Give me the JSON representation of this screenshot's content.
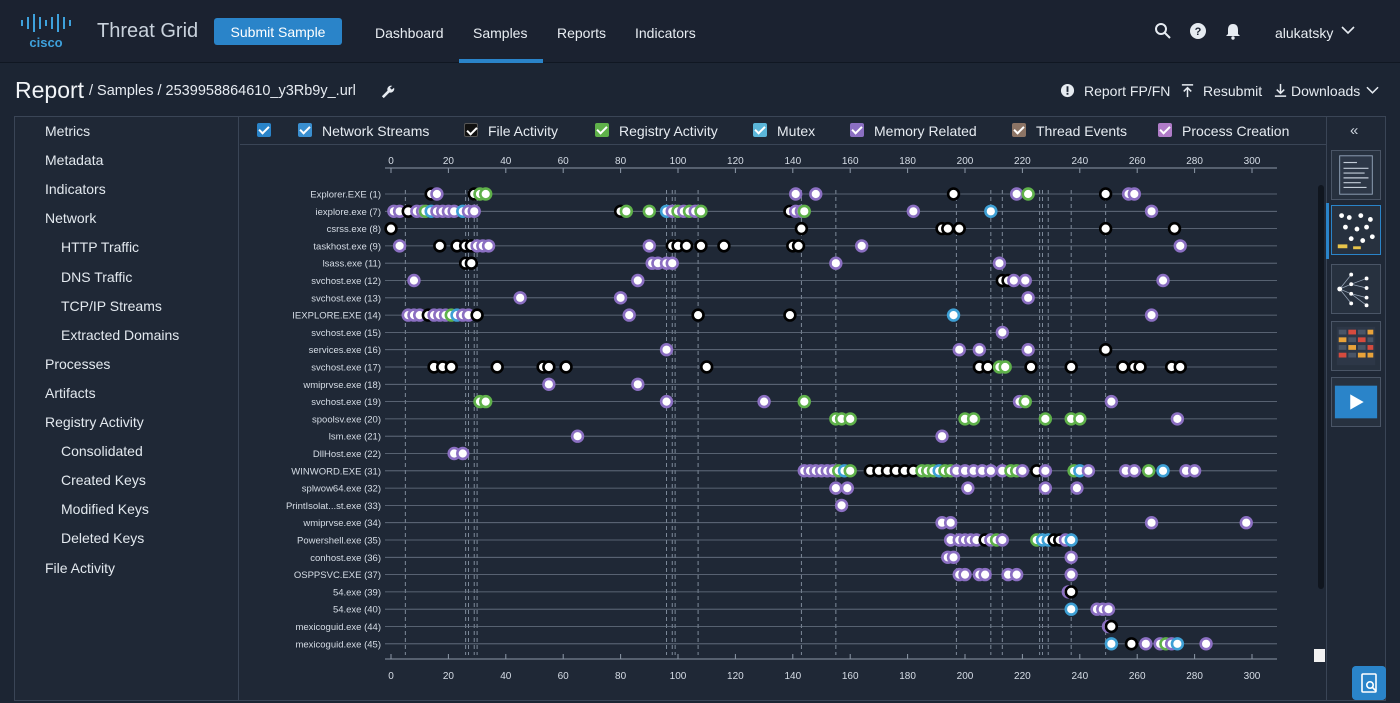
{
  "app": {
    "brand": "cisco",
    "title": "Threat Grid",
    "submit_label": "Submit Sample",
    "nav": [
      "Dashboard",
      "Samples",
      "Reports",
      "Indicators"
    ],
    "active_nav": "Samples",
    "user": "alukatsky",
    "icons": [
      "search-icon",
      "help-icon",
      "bell-icon",
      "chevron-down-icon"
    ],
    "accent": "#2a84c9"
  },
  "breadcrumb": {
    "report": "Report",
    "path": " / Samples / 2539958864610_y3Rb9y_.url"
  },
  "actions": {
    "report_fpfn": "Report FP/FN",
    "resubmit": "Resubmit",
    "downloads": "Downloads"
  },
  "sidebar": [
    {
      "label": "Metrics",
      "indent": false
    },
    {
      "label": "Metadata",
      "indent": false
    },
    {
      "label": "Indicators",
      "indent": false
    },
    {
      "label": "Network",
      "indent": false
    },
    {
      "label": "HTTP Traffic",
      "indent": true
    },
    {
      "label": "DNS Traffic",
      "indent": true
    },
    {
      "label": "TCP/IP Streams",
      "indent": true
    },
    {
      "label": "Extracted Domains",
      "indent": true
    },
    {
      "label": "Processes",
      "indent": false
    },
    {
      "label": "Artifacts",
      "indent": false
    },
    {
      "label": "Registry Activity",
      "indent": false
    },
    {
      "label": "Consolidated",
      "indent": true
    },
    {
      "label": "Created Keys",
      "indent": true
    },
    {
      "label": "Modified Keys",
      "indent": true
    },
    {
      "label": "Deleted Keys",
      "indent": true
    },
    {
      "label": "File Activity",
      "indent": false
    }
  ],
  "legend": [
    {
      "label": "",
      "color": "#2a84c9",
      "checked": true
    },
    {
      "label": "Network Streams",
      "color": "#3a8fd0",
      "checked": true
    },
    {
      "label": "File Activity",
      "color": "#111111",
      "checked": true
    },
    {
      "label": "Registry Activity",
      "color": "#5fb14a",
      "checked": true
    },
    {
      "label": "Mutex",
      "color": "#5bb6d9",
      "checked": true
    },
    {
      "label": "Memory Related",
      "color": "#8b6fc2",
      "checked": true
    },
    {
      "label": "Thread Events",
      "color": "#8c7465",
      "checked": true
    },
    {
      "label": "Process Creation",
      "color": "#b07cc8",
      "checked": true
    }
  ],
  "chart_data": {
    "type": "scatter",
    "xlim": [
      0,
      300
    ],
    "ticks": [
      0,
      20,
      40,
      60,
      80,
      100,
      120,
      140,
      160,
      180,
      200,
      220,
      240,
      260,
      280,
      300
    ],
    "vlines": [
      5,
      26,
      27,
      29,
      30,
      96,
      98,
      99,
      107,
      143,
      155,
      197,
      209,
      213,
      226,
      227,
      229,
      237,
      249
    ],
    "processes": [
      {
        "label": "Explorer.EXE (1)",
        "events": [
          [
            14,
            "file"
          ],
          [
            16,
            "mem"
          ],
          [
            29,
            "file"
          ],
          [
            31,
            "reg"
          ],
          [
            33,
            "reg"
          ],
          [
            141,
            "mem"
          ],
          [
            148,
            "mem"
          ],
          [
            196,
            "file"
          ],
          [
            218,
            "mem"
          ],
          [
            222,
            "reg"
          ],
          [
            249,
            "file"
          ],
          [
            257,
            "mem"
          ],
          [
            259,
            "mem"
          ]
        ]
      },
      {
        "label": "iexplore.exe (7)",
        "events": [
          [
            1,
            "mem"
          ],
          [
            3,
            "mem"
          ],
          [
            6,
            "file"
          ],
          [
            9,
            "mem"
          ],
          [
            11,
            "mem"
          ],
          [
            12,
            "reg"
          ],
          [
            14,
            "mut"
          ],
          [
            16,
            "mem"
          ],
          [
            18,
            "mem"
          ],
          [
            20,
            "mem"
          ],
          [
            22,
            "mem"
          ],
          [
            25,
            "mut"
          ],
          [
            27,
            "mem"
          ],
          [
            29,
            "mem"
          ],
          [
            80,
            "file"
          ],
          [
            82,
            "reg"
          ],
          [
            90,
            "reg"
          ],
          [
            96,
            "mut"
          ],
          [
            98,
            "mem"
          ],
          [
            100,
            "reg"
          ],
          [
            102,
            "mem"
          ],
          [
            104,
            "reg"
          ],
          [
            106,
            "mem"
          ],
          [
            108,
            "reg"
          ],
          [
            139,
            "file"
          ],
          [
            141,
            "mem"
          ],
          [
            143,
            "mem"
          ],
          [
            144,
            "reg"
          ],
          [
            182,
            "mem"
          ],
          [
            209,
            "mut"
          ],
          [
            265,
            "mem"
          ]
        ]
      },
      {
        "label": "csrss.exe (8)",
        "events": [
          [
            0,
            "file"
          ],
          [
            143,
            "file"
          ],
          [
            192,
            "file"
          ],
          [
            194,
            "file"
          ],
          [
            198,
            "file"
          ],
          [
            249,
            "file"
          ],
          [
            273,
            "file"
          ]
        ]
      },
      {
        "label": "taskhost.exe (9)",
        "events": [
          [
            3,
            "mem"
          ],
          [
            17,
            "file"
          ],
          [
            23,
            "file"
          ],
          [
            26,
            "file"
          ],
          [
            28,
            "file"
          ],
          [
            30,
            "mem"
          ],
          [
            32,
            "mem"
          ],
          [
            34,
            "mem"
          ],
          [
            90,
            "mem"
          ],
          [
            98,
            "file"
          ],
          [
            100,
            "file"
          ],
          [
            103,
            "file"
          ],
          [
            108,
            "file"
          ],
          [
            116,
            "file"
          ],
          [
            140,
            "file"
          ],
          [
            142,
            "file"
          ],
          [
            164,
            "mem"
          ],
          [
            275,
            "mem"
          ]
        ]
      },
      {
        "label": "lsass.exe (11)",
        "events": [
          [
            26,
            "file"
          ],
          [
            28,
            "file"
          ],
          [
            91,
            "mem"
          ],
          [
            93,
            "mem"
          ],
          [
            96,
            "mem"
          ],
          [
            98,
            "mem"
          ],
          [
            155,
            "mem"
          ],
          [
            212,
            "mem"
          ]
        ]
      },
      {
        "label": "svchost.exe (12)",
        "events": [
          [
            8,
            "mem"
          ],
          [
            86,
            "mem"
          ],
          [
            213,
            "file"
          ],
          [
            215,
            "file"
          ],
          [
            217,
            "mem"
          ],
          [
            221,
            "mem"
          ],
          [
            269,
            "mem"
          ]
        ]
      },
      {
        "label": "svchost.exe (13)",
        "events": [
          [
            45,
            "mem"
          ],
          [
            80,
            "mem"
          ],
          [
            222,
            "mem"
          ]
        ]
      },
      {
        "label": "IEXPLORE.EXE (14)",
        "events": [
          [
            6,
            "mem"
          ],
          [
            8,
            "mem"
          ],
          [
            10,
            "mem"
          ],
          [
            13,
            "file"
          ],
          [
            15,
            "mem"
          ],
          [
            17,
            "mem"
          ],
          [
            19,
            "mem"
          ],
          [
            21,
            "reg"
          ],
          [
            23,
            "mut"
          ],
          [
            25,
            "mem"
          ],
          [
            27,
            "mem"
          ],
          [
            30,
            "file"
          ],
          [
            83,
            "mem"
          ],
          [
            107,
            "file"
          ],
          [
            139,
            "file"
          ],
          [
            196,
            "mut"
          ],
          [
            265,
            "mem"
          ]
        ]
      },
      {
        "label": "svchost.exe (15)",
        "events": [
          [
            213,
            "mem"
          ]
        ]
      },
      {
        "label": "services.exe (16)",
        "events": [
          [
            96,
            "mem"
          ],
          [
            198,
            "mem"
          ],
          [
            205,
            "mem"
          ],
          [
            222,
            "mem"
          ],
          [
            249,
            "file"
          ]
        ]
      },
      {
        "label": "svchost.exe (17)",
        "events": [
          [
            15,
            "file"
          ],
          [
            18,
            "file"
          ],
          [
            21,
            "file"
          ],
          [
            37,
            "file"
          ],
          [
            53,
            "file"
          ],
          [
            55,
            "file"
          ],
          [
            61,
            "file"
          ],
          [
            110,
            "file"
          ],
          [
            205,
            "file"
          ],
          [
            208,
            "file"
          ],
          [
            212,
            "reg"
          ],
          [
            214,
            "reg"
          ],
          [
            223,
            "file"
          ],
          [
            237,
            "file"
          ],
          [
            255,
            "file"
          ],
          [
            259,
            "file"
          ],
          [
            261,
            "file"
          ],
          [
            272,
            "file"
          ],
          [
            275,
            "file"
          ]
        ]
      },
      {
        "label": "wmiprvse.exe (18)",
        "events": [
          [
            55,
            "mem"
          ],
          [
            86,
            "mem"
          ]
        ]
      },
      {
        "label": "svchost.exe (19)",
        "events": [
          [
            31,
            "reg"
          ],
          [
            33,
            "reg"
          ],
          [
            96,
            "mem"
          ],
          [
            130,
            "mem"
          ],
          [
            144,
            "reg"
          ],
          [
            219,
            "mem"
          ],
          [
            221,
            "reg"
          ],
          [
            251,
            "mem"
          ]
        ]
      },
      {
        "label": "spoolsv.exe (20)",
        "events": [
          [
            155,
            "reg"
          ],
          [
            157,
            "reg"
          ],
          [
            160,
            "reg"
          ],
          [
            200,
            "reg"
          ],
          [
            203,
            "reg"
          ],
          [
            228,
            "reg"
          ],
          [
            237,
            "reg"
          ],
          [
            240,
            "reg"
          ],
          [
            274,
            "mem"
          ]
        ]
      },
      {
        "label": "lsm.exe (21)",
        "events": [
          [
            65,
            "mem"
          ],
          [
            192,
            "mem"
          ]
        ]
      },
      {
        "label": "DllHost.exe (22)",
        "events": [
          [
            22,
            "mem"
          ],
          [
            25,
            "mem"
          ]
        ]
      },
      {
        "label": "WINWORD.EXE (31)",
        "events": [
          [
            144,
            "mem"
          ],
          [
            146,
            "mem"
          ],
          [
            148,
            "mem"
          ],
          [
            150,
            "mem"
          ],
          [
            152,
            "mem"
          ],
          [
            154,
            "mem"
          ],
          [
            156,
            "reg"
          ],
          [
            158,
            "mut"
          ],
          [
            160,
            "reg"
          ],
          [
            167,
            "file"
          ],
          [
            170,
            "file"
          ],
          [
            173,
            "file"
          ],
          [
            176,
            "file"
          ],
          [
            179,
            "file"
          ],
          [
            182,
            "file"
          ],
          [
            185,
            "reg"
          ],
          [
            187,
            "reg"
          ],
          [
            189,
            "reg"
          ],
          [
            191,
            "mut"
          ],
          [
            193,
            "reg"
          ],
          [
            195,
            "reg"
          ],
          [
            197,
            "mem"
          ],
          [
            200,
            "mem"
          ],
          [
            203,
            "mem"
          ],
          [
            206,
            "mem"
          ],
          [
            209,
            "mem"
          ],
          [
            213,
            "mem"
          ],
          [
            216,
            "reg"
          ],
          [
            218,
            "reg"
          ],
          [
            220,
            "mem"
          ],
          [
            225,
            "file"
          ],
          [
            228,
            "mem"
          ],
          [
            238,
            "reg"
          ],
          [
            240,
            "mut"
          ],
          [
            243,
            "mem"
          ],
          [
            256,
            "mem"
          ],
          [
            259,
            "mem"
          ],
          [
            264,
            "reg"
          ],
          [
            269,
            "mut"
          ],
          [
            277,
            "mem"
          ],
          [
            280,
            "mem"
          ]
        ]
      },
      {
        "label": "splwow64.exe (32)",
        "events": [
          [
            155,
            "mem"
          ],
          [
            159,
            "mem"
          ],
          [
            201,
            "mem"
          ],
          [
            228,
            "mem"
          ],
          [
            239,
            "mem"
          ]
        ]
      },
      {
        "label": "PrintIsolat...st.exe (33)",
        "events": [
          [
            157,
            "mem"
          ]
        ]
      },
      {
        "label": "wmiprvse.exe (34)",
        "events": [
          [
            192,
            "mem"
          ],
          [
            195,
            "mem"
          ],
          [
            265,
            "mem"
          ],
          [
            298,
            "mem"
          ]
        ]
      },
      {
        "label": "Powershell.exe (35)",
        "events": [
          [
            195,
            "mem"
          ],
          [
            198,
            "mem"
          ],
          [
            200,
            "mem"
          ],
          [
            202,
            "mem"
          ],
          [
            204,
            "mem"
          ],
          [
            207,
            "file"
          ],
          [
            209,
            "mem"
          ],
          [
            211,
            "reg"
          ],
          [
            213,
            "mem"
          ],
          [
            225,
            "reg"
          ],
          [
            227,
            "mut"
          ],
          [
            229,
            "mut"
          ],
          [
            231,
            "file"
          ],
          [
            233,
            "file"
          ],
          [
            235,
            "mem"
          ],
          [
            237,
            "mut"
          ]
        ]
      },
      {
        "label": "conhost.exe (36)",
        "events": [
          [
            194,
            "mem"
          ],
          [
            196,
            "mem"
          ],
          [
            237,
            "mem"
          ]
        ]
      },
      {
        "label": "OSPPSVC.EXE (37)",
        "events": [
          [
            198,
            "mem"
          ],
          [
            200,
            "mem"
          ],
          [
            205,
            "mem"
          ],
          [
            207,
            "mem"
          ],
          [
            215,
            "mem"
          ],
          [
            218,
            "mem"
          ],
          [
            237,
            "mem"
          ]
        ]
      },
      {
        "label": "54.exe (39)",
        "events": [
          [
            236,
            "mem"
          ],
          [
            237,
            "file"
          ]
        ]
      },
      {
        "label": "54.exe (40)",
        "events": [
          [
            237,
            "mut"
          ],
          [
            246,
            "mem"
          ],
          [
            248,
            "mem"
          ],
          [
            250,
            "mem"
          ]
        ]
      },
      {
        "label": "mexicoguid.exe (44)",
        "events": [
          [
            250,
            "mem"
          ],
          [
            251,
            "file"
          ]
        ]
      },
      {
        "label": "mexicoguid.exe (45)",
        "events": [
          [
            251,
            "mut"
          ],
          [
            258,
            "file"
          ],
          [
            263,
            "mem"
          ],
          [
            268,
            "mem"
          ],
          [
            270,
            "reg"
          ],
          [
            272,
            "mem"
          ],
          [
            274,
            "mut"
          ],
          [
            284,
            "mem"
          ]
        ]
      }
    ]
  }
}
